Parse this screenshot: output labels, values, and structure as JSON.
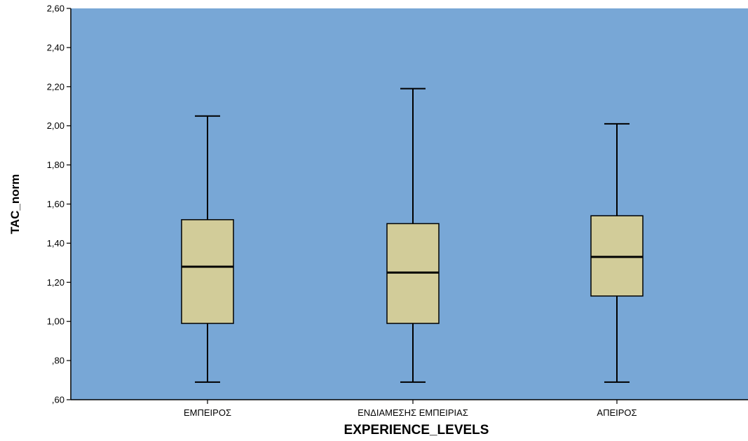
{
  "chart_data": {
    "type": "boxplot",
    "xlabel": "EXPERIENCE_LEVELS",
    "ylabel": "TAC_norm",
    "ylim": [
      0.6,
      2.6
    ],
    "yticks": [
      0.6,
      0.8,
      1.0,
      1.2,
      1.4,
      1.6,
      1.8,
      2.0,
      2.2,
      2.4,
      2.6
    ],
    "ytick_labels": [
      ",60",
      ",80",
      "1,00",
      "1,20",
      "1,40",
      "1,60",
      "1,80",
      "2,00",
      "2,20",
      "2,40",
      "2,60"
    ],
    "categories": [
      "ΕΜΠΕΙΡΟΣ",
      "ΕΝΔΙΑΜΕΣΗΣ ΕΜΠΕΙΡΙΑΣ",
      "ΑΠΕΙΡΟΣ"
    ],
    "boxes": [
      {
        "category": "ΕΜΠΕΙΡΟΣ",
        "min": 0.69,
        "q1": 0.99,
        "median": 1.28,
        "q3": 1.52,
        "max": 2.05
      },
      {
        "category": "ΕΝΔΙΑΜΕΣΗΣ ΕΜΠΕΙΡΙΑΣ",
        "min": 0.69,
        "q1": 0.99,
        "median": 1.25,
        "q3": 1.5,
        "max": 2.19
      },
      {
        "category": "ΑΠΕΙΡΟΣ",
        "min": 0.69,
        "q1": 1.13,
        "median": 1.33,
        "q3": 1.54,
        "max": 2.01
      }
    ],
    "colors": {
      "plot_background": "#78a7d6",
      "box_fill": "#d2cc99",
      "line": "#000000"
    },
    "grid": false,
    "legend": "none"
  }
}
